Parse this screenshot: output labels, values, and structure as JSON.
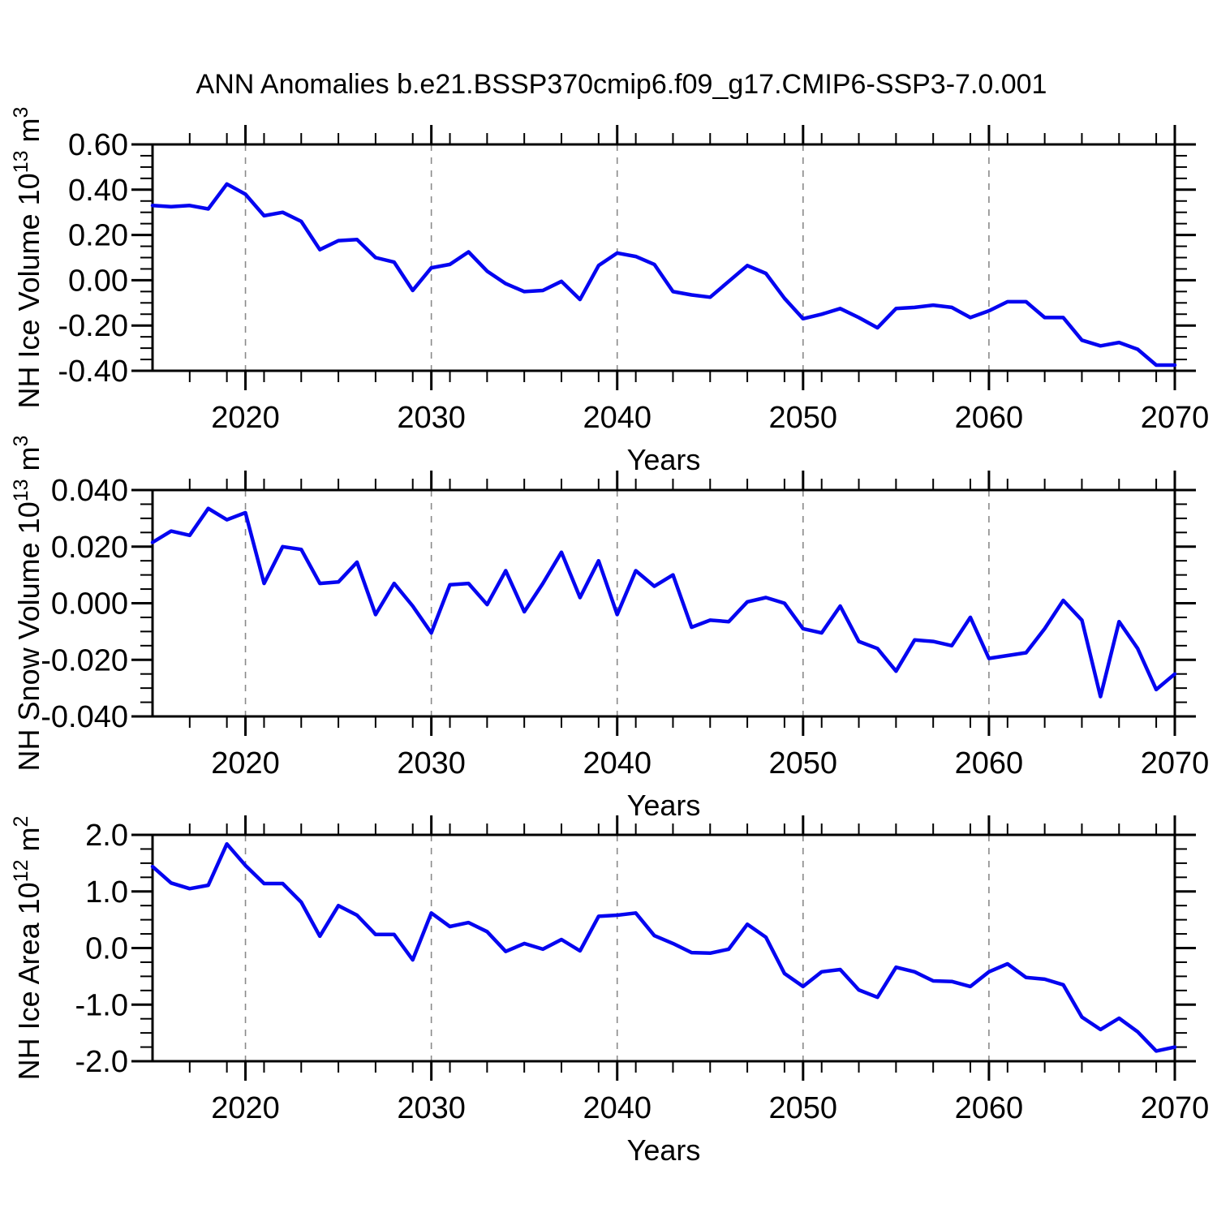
{
  "title": "ANN Anomalies b.e21.BSSP370cmip6.f09_g17.CMIP6-SSP3-7.0.001",
  "colors": {
    "line": "#0505f0",
    "frame": "#000000",
    "gridline": "#8a8a8a",
    "text": "#000000",
    "background": "#ffffff"
  },
  "x_axis": {
    "label": "Years",
    "range": [
      2015,
      2070
    ],
    "major_ticks": [
      2020,
      2030,
      2040,
      2050,
      2060,
      2070
    ],
    "major_labels": [
      "2020",
      "2030",
      "2040",
      "2050",
      "2060",
      "2070"
    ],
    "minor_step": 2,
    "gridline_years": [
      2020,
      2030,
      2040,
      2050,
      2060
    ]
  },
  "years": [
    2015,
    2016,
    2017,
    2018,
    2019,
    2020,
    2021,
    2022,
    2023,
    2024,
    2025,
    2026,
    2027,
    2028,
    2029,
    2030,
    2031,
    2032,
    2033,
    2034,
    2035,
    2036,
    2037,
    2038,
    2039,
    2040,
    2041,
    2042,
    2043,
    2044,
    2045,
    2046,
    2047,
    2048,
    2049,
    2050,
    2051,
    2052,
    2053,
    2054,
    2055,
    2056,
    2057,
    2058,
    2059,
    2060,
    2061,
    2062,
    2063,
    2064,
    2065,
    2066,
    2067,
    2068,
    2069,
    2070
  ],
  "chart_data": [
    {
      "type": "line",
      "name": "nh-ice-volume",
      "ylabel_plain": "NH Ice Volume 10^13 m^3",
      "ylabel_parts": [
        {
          "t": "NH Ice Volume 10",
          "sup": false
        },
        {
          "t": "13",
          "sup": true
        },
        {
          "t": " m",
          "sup": false
        },
        {
          "t": "3",
          "sup": true
        }
      ],
      "ylim": [
        -0.4,
        0.6
      ],
      "y_major_values": [
        0.6,
        0.4,
        0.2,
        0.0,
        -0.2,
        -0.4
      ],
      "y_tick_labels": [
        "0.60",
        "0.40",
        "0.20",
        "0.00",
        "-0.20",
        "-0.40"
      ],
      "y_minor_step": 0.05,
      "grid": true,
      "legend": "none",
      "values": [
        0.33,
        0.325,
        0.33,
        0.315,
        0.425,
        0.38,
        0.285,
        0.3,
        0.26,
        0.135,
        0.175,
        0.18,
        0.1,
        0.08,
        -0.045,
        0.055,
        0.07,
        0.125,
        0.04,
        -0.015,
        -0.05,
        -0.045,
        -0.005,
        -0.085,
        0.065,
        0.12,
        0.105,
        0.07,
        -0.05,
        -0.065,
        -0.075,
        -0.005,
        0.065,
        0.03,
        -0.08,
        -0.17,
        -0.15,
        -0.125,
        -0.165,
        -0.21,
        -0.125,
        -0.12,
        -0.11,
        -0.12,
        -0.165,
        -0.135,
        -0.095,
        -0.095,
        -0.165,
        -0.165,
        -0.265,
        -0.29,
        -0.275,
        -0.305,
        -0.375,
        -0.375
      ]
    },
    {
      "type": "line",
      "name": "nh-snow-volume",
      "ylabel_plain": "NH Snow Volume 10^13 m^3",
      "ylabel_parts": [
        {
          "t": "NH Snow Volume 10",
          "sup": false
        },
        {
          "t": "13",
          "sup": true
        },
        {
          "t": " m",
          "sup": false
        },
        {
          "t": "3",
          "sup": true
        }
      ],
      "ylim": [
        -0.04,
        0.04
      ],
      "y_major_values": [
        0.04,
        0.02,
        0.0,
        -0.02,
        -0.04
      ],
      "y_tick_labels": [
        "0.040",
        "0.020",
        "0.000",
        "-0.020",
        "-0.040"
      ],
      "y_minor_step": 0.005,
      "grid": true,
      "legend": "none",
      "values": [
        0.0215,
        0.0255,
        0.024,
        0.0335,
        0.0295,
        0.032,
        0.007,
        0.02,
        0.019,
        0.007,
        0.0075,
        0.0145,
        -0.004,
        0.007,
        -0.001,
        -0.0105,
        0.0065,
        0.007,
        -0.0005,
        0.0115,
        -0.003,
        0.007,
        0.018,
        0.002,
        0.015,
        -0.004,
        0.0115,
        0.006,
        0.01,
        -0.0085,
        -0.006,
        -0.0065,
        0.0005,
        0.002,
        0.0,
        -0.009,
        -0.0105,
        -0.001,
        -0.0135,
        -0.016,
        -0.024,
        -0.013,
        -0.0135,
        -0.015,
        -0.005,
        -0.0195,
        -0.0185,
        -0.0175,
        -0.009,
        0.001,
        -0.006,
        -0.033,
        -0.0065,
        -0.016,
        -0.0305,
        -0.025
      ]
    },
    {
      "type": "line",
      "name": "nh-ice-area",
      "ylabel_plain": "NH Ice Area 10^12 m^2",
      "ylabel_parts": [
        {
          "t": "NH Ice Area 10",
          "sup": false
        },
        {
          "t": "12",
          "sup": true
        },
        {
          "t": " m",
          "sup": false
        },
        {
          "t": "2",
          "sup": true
        }
      ],
      "ylim": [
        -2.0,
        2.0
      ],
      "y_major_values": [
        2.0,
        1.0,
        0.0,
        -1.0,
        -2.0
      ],
      "y_tick_labels": [
        "2.0",
        "1.0",
        "0.0",
        "-1.0",
        "-2.0"
      ],
      "y_minor_step": 0.25,
      "grid": true,
      "legend": "none",
      "values": [
        1.44,
        1.15,
        1.05,
        1.11,
        1.84,
        1.46,
        1.14,
        1.14,
        0.81,
        0.21,
        0.75,
        0.58,
        0.24,
        0.24,
        -0.21,
        0.62,
        0.38,
        0.45,
        0.29,
        -0.06,
        0.08,
        -0.02,
        0.15,
        -0.05,
        0.56,
        0.58,
        0.62,
        0.22,
        0.08,
        -0.08,
        -0.09,
        -0.02,
        0.42,
        0.19,
        -0.45,
        -0.68,
        -0.42,
        -0.38,
        -0.74,
        -0.87,
        -0.34,
        -0.42,
        -0.58,
        -0.59,
        -0.68,
        -0.42,
        -0.28,
        -0.52,
        -0.55,
        -0.65,
        -1.22,
        -1.44,
        -1.24,
        -1.48,
        -1.82,
        -1.75
      ]
    }
  ]
}
